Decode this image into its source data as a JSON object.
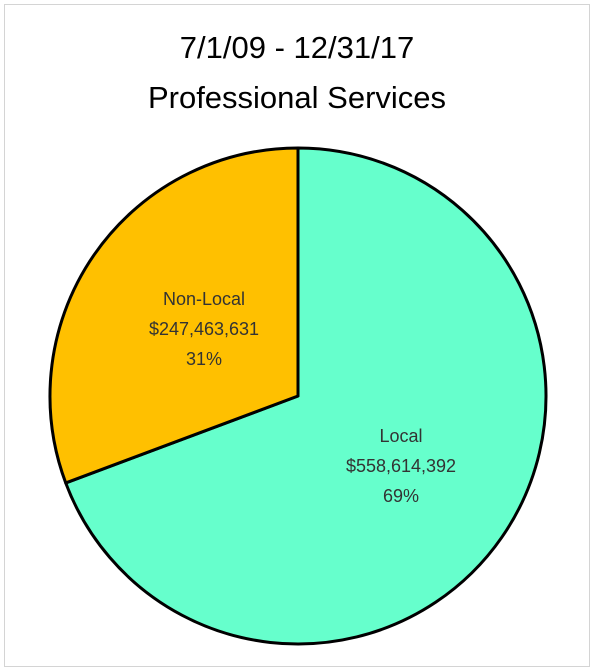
{
  "chart_data": {
    "type": "pie",
    "title_line1": "7/1/09 - 12/31/17",
    "title_line2": "Professional Services",
    "slices": [
      {
        "label": "Local",
        "value": 558614392,
        "value_text": "$558,614,392",
        "percent_text": "69%",
        "color": "#66ffcc"
      },
      {
        "label": "Non-Local",
        "value": 247463631,
        "value_text": "$247,463,631",
        "percent_text": "31%",
        "color": "#ffc000"
      }
    ],
    "start": "12 o'clock",
    "direction": "clockwise",
    "legend": "none"
  }
}
